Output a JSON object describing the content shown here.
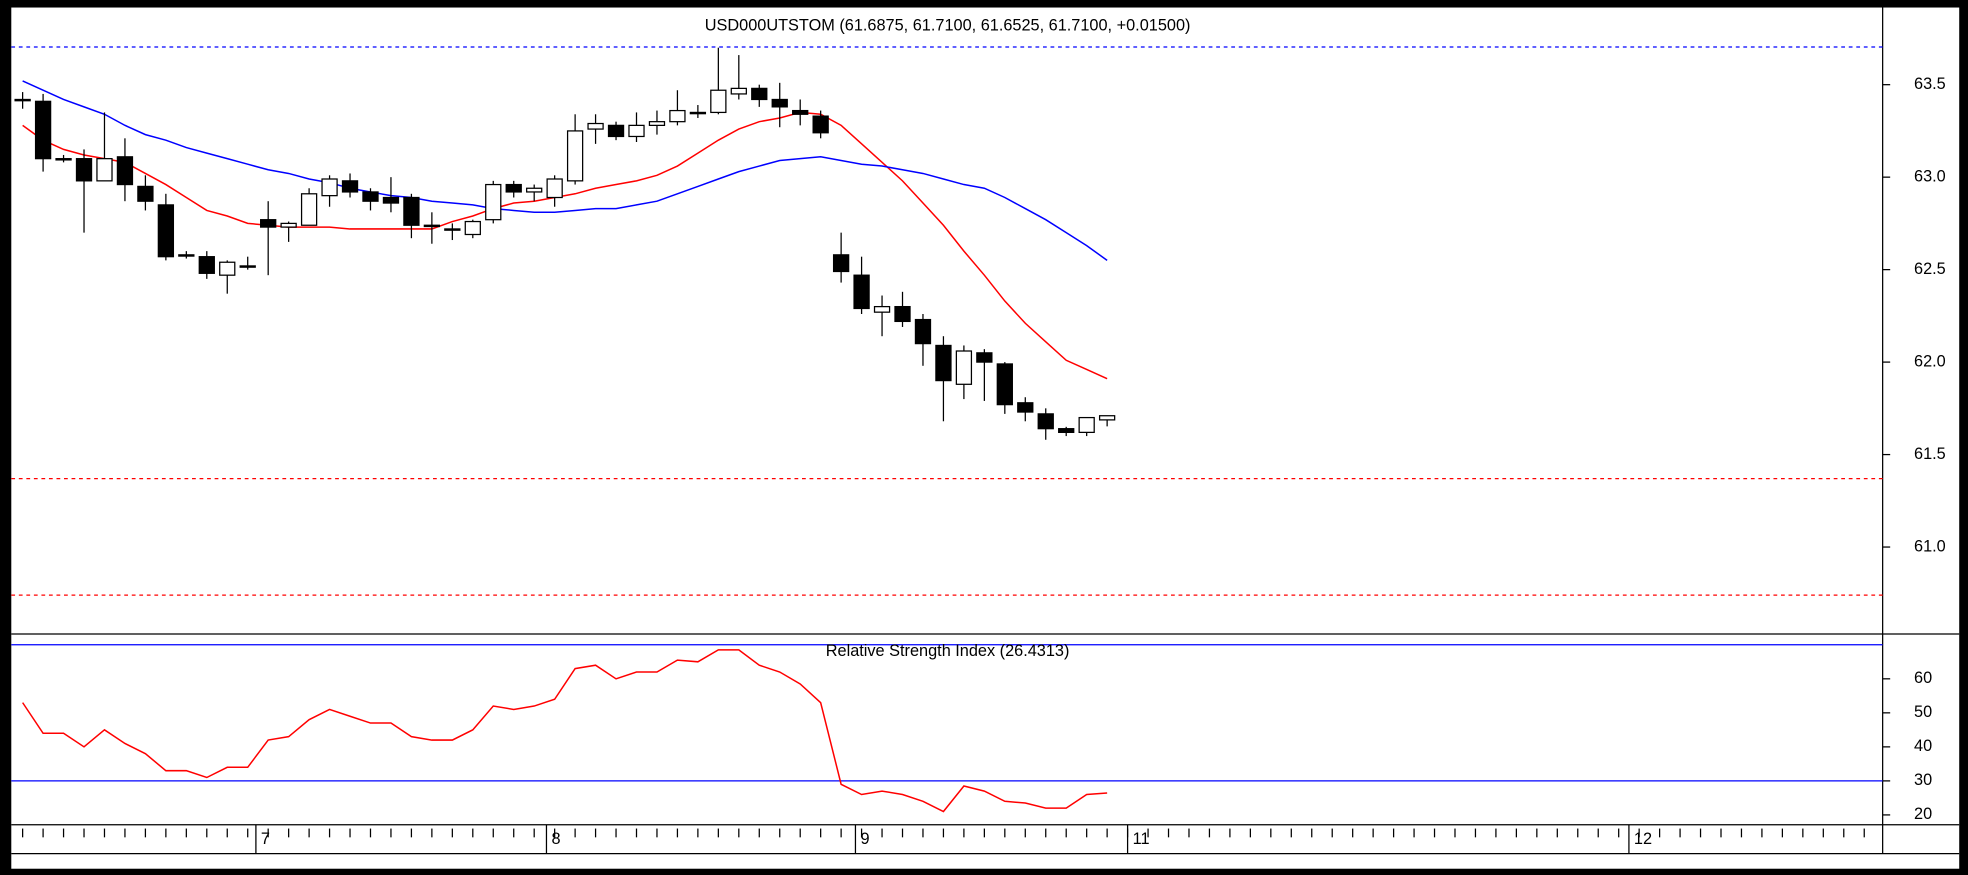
{
  "chart_data": [
    {
      "type": "candlestick",
      "title": "USD000UTSTOM (61.6875, 61.7100, 61.6525, 61.7100, +0.01500)",
      "open": [
        63.42,
        63.41,
        63.1,
        63.1,
        62.98,
        63.11,
        62.95,
        62.85,
        62.58,
        62.57,
        62.47,
        62.52,
        62.77,
        62.73,
        62.74,
        62.9,
        62.98,
        62.92,
        62.89,
        62.89,
        62.74,
        62.72,
        62.69,
        62.77,
        62.96,
        62.92,
        62.89,
        62.98,
        63.26,
        63.28,
        63.22,
        63.28,
        63.3,
        63.35,
        63.35,
        63.45,
        63.48,
        63.42,
        63.36,
        63.33,
        62.58,
        62.47,
        62.27,
        62.3,
        62.23,
        62.09,
        61.88,
        62.05,
        61.99,
        61.78,
        61.72,
        61.64,
        61.62,
        61.6875
      ],
      "high": [
        63.46,
        63.45,
        63.12,
        63.15,
        63.35,
        63.21,
        63.01,
        62.91,
        62.6,
        62.6,
        62.55,
        62.57,
        62.87,
        62.76,
        62.94,
        63.01,
        63.02,
        62.94,
        63.0,
        62.91,
        62.81,
        62.75,
        62.77,
        62.98,
        62.98,
        62.96,
        63.01,
        63.34,
        63.34,
        63.3,
        63.35,
        63.36,
        63.47,
        63.39,
        63.7,
        63.66,
        63.5,
        63.51,
        63.42,
        63.36,
        62.7,
        62.57,
        62.36,
        62.38,
        62.26,
        62.14,
        62.09,
        62.07,
        62.0,
        61.81,
        61.75,
        61.65,
        61.7,
        61.71
      ],
      "low": [
        63.37,
        63.03,
        63.08,
        62.7,
        62.98,
        62.87,
        62.82,
        62.55,
        62.56,
        62.45,
        62.37,
        62.5,
        62.47,
        62.65,
        62.74,
        62.84,
        62.89,
        62.82,
        62.81,
        62.67,
        62.64,
        62.66,
        62.67,
        62.75,
        62.89,
        62.87,
        62.84,
        62.96,
        63.18,
        63.2,
        63.19,
        63.23,
        63.28,
        63.32,
        63.34,
        63.42,
        63.38,
        63.27,
        63.28,
        63.21,
        62.43,
        62.26,
        62.14,
        62.19,
        61.98,
        61.68,
        61.8,
        61.79,
        61.72,
        61.68,
        61.58,
        61.6,
        61.6,
        61.6525
      ],
      "close": [
        63.42,
        63.1,
        63.1,
        62.98,
        63.1,
        62.96,
        62.87,
        62.57,
        62.58,
        62.48,
        62.54,
        62.52,
        62.73,
        62.75,
        62.91,
        62.99,
        62.92,
        62.87,
        62.86,
        62.74,
        62.74,
        62.72,
        62.76,
        62.96,
        62.92,
        62.94,
        62.99,
        63.25,
        63.29,
        63.22,
        63.28,
        63.3,
        63.36,
        63.35,
        63.47,
        63.48,
        63.42,
        63.38,
        63.34,
        63.24,
        62.49,
        62.29,
        62.3,
        62.22,
        62.1,
        61.9,
        62.06,
        62.0,
        61.77,
        61.73,
        61.64,
        61.62,
        61.7,
        61.71
      ],
      "up_color": "#ffffff",
      "down_color": "#000000",
      "series": [
        {
          "color": "#ff0000",
          "values": [
            63.28,
            63.2,
            63.15,
            63.12,
            63.1,
            63.08,
            63.02,
            62.96,
            62.89,
            62.82,
            62.79,
            62.75,
            62.74,
            62.73,
            62.73,
            62.73,
            62.72,
            62.72,
            62.72,
            62.72,
            62.72,
            62.76,
            62.79,
            62.83,
            62.86,
            62.87,
            62.89,
            62.91,
            62.94,
            62.96,
            62.98,
            63.01,
            63.06,
            63.13,
            63.2,
            63.26,
            63.3,
            63.32,
            63.35,
            63.34,
            63.28,
            63.18,
            63.08,
            62.98,
            62.86,
            62.74,
            62.6,
            62.47,
            62.33,
            62.21,
            62.11,
            62.01,
            61.96,
            61.91
          ]
        },
        {
          "color": "#0000ff",
          "values": [
            63.52,
            63.47,
            63.42,
            63.38,
            63.34,
            63.28,
            63.23,
            63.2,
            63.16,
            63.13,
            63.1,
            63.07,
            63.04,
            63.02,
            62.99,
            62.97,
            62.94,
            62.92,
            62.9,
            62.89,
            62.87,
            62.86,
            62.85,
            62.83,
            62.82,
            62.81,
            62.81,
            62.82,
            62.83,
            62.83,
            62.85,
            62.87,
            62.91,
            62.95,
            62.99,
            63.03,
            63.06,
            63.09,
            63.1,
            63.11,
            63.09,
            63.07,
            63.06,
            63.04,
            63.02,
            62.99,
            62.96,
            62.94,
            62.89,
            62.83,
            62.77,
            62.7,
            62.63,
            62.55
          ]
        }
      ],
      "hlines": [
        {
          "value": 63.704,
          "color": "#0000ff"
        },
        {
          "value": 61.37,
          "color": "#ff0000"
        },
        {
          "value": 60.74,
          "color": "#ff0000"
        }
      ],
      "ylim": [
        60.53,
        63.89
      ],
      "yticks": [
        {
          "value": 61,
          "label": "61.0"
        },
        61.5,
        {
          "value": 62,
          "label": "62.0"
        },
        62.5,
        {
          "value": 63,
          "label": "63.0"
        },
        63.5
      ],
      "xlim": [
        -0.37,
        90.9
      ],
      "xticks": [
        {
          "value": 11.4,
          "label": "7"
        },
        {
          "value": 25.6,
          "label": "8"
        },
        {
          "value": 40.7,
          "label": "9"
        },
        {
          "value": 54,
          "label": "11"
        },
        {
          "value": 78.5,
          "label": "12"
        }
      ]
    },
    {
      "type": "line",
      "title": "Relative Strength Index (26.4313)",
      "series": [
        {
          "color": "#ff0000",
          "values": [
            53,
            44,
            44,
            40,
            45,
            41,
            38,
            33,
            33,
            31,
            34,
            34,
            42,
            43,
            48,
            51,
            49,
            47,
            47,
            43,
            42,
            42,
            45,
            52,
            51,
            52,
            54,
            63,
            64,
            60,
            62,
            62,
            65.5,
            65,
            68.5,
            68.5,
            64,
            62,
            58.5,
            53,
            29,
            26,
            27,
            26,
            24,
            21,
            28.5,
            27,
            24,
            23.5,
            22,
            22,
            26,
            26.4313
          ]
        }
      ],
      "hlines": [
        {
          "value": 70,
          "color": "#0000ff"
        },
        {
          "value": 30,
          "color": "#0000ff"
        }
      ],
      "ylim": [
        17.1,
        70.6
      ],
      "yticks": [
        20,
        30,
        40,
        50,
        60
      ]
    }
  ]
}
